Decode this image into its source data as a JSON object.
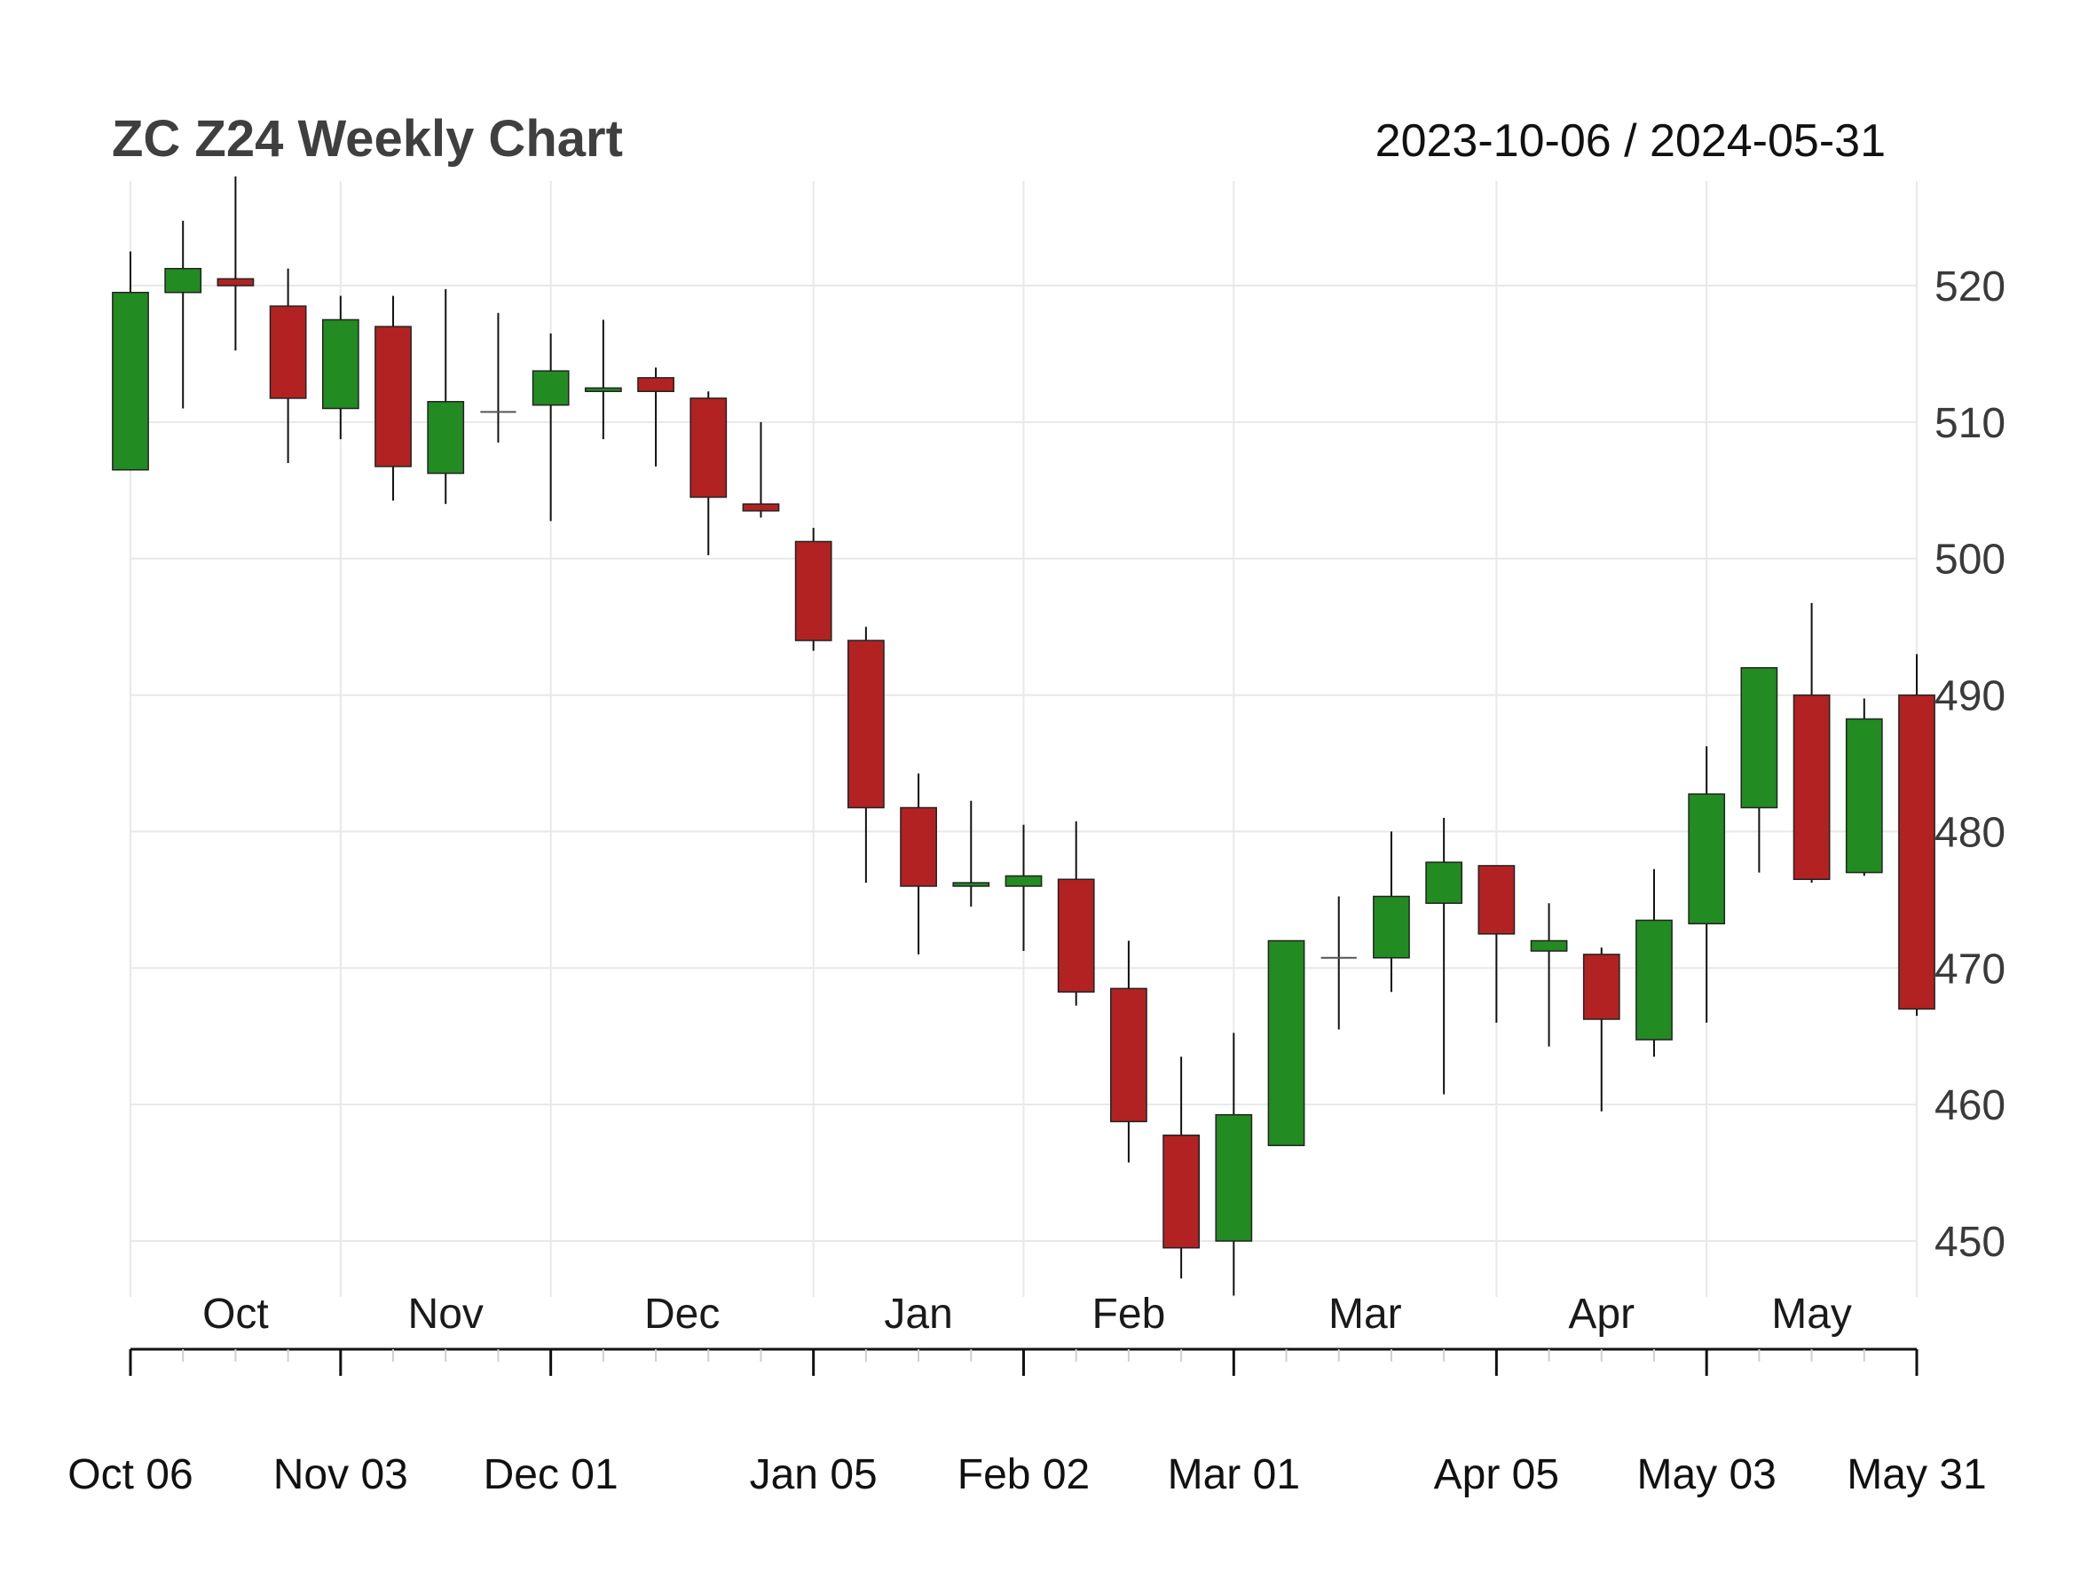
{
  "chart_data": {
    "type": "candlestick",
    "title": "ZC Z24 Weekly Chart",
    "date_range": "2023-10-06 / 2024-05-31",
    "ylim": [
      446,
      528
    ],
    "y_ticks": [
      450,
      460,
      470,
      480,
      490,
      500,
      510,
      520
    ],
    "grid": true,
    "colors": {
      "up": "#228B22",
      "down": "#B22222",
      "wick": "#111111",
      "grid": "#e8e8e8",
      "axis": "#111111"
    },
    "month_labels": [
      {
        "label": "Oct",
        "x": 2
      },
      {
        "label": "Nov",
        "x": 6
      },
      {
        "label": "Dec",
        "x": 10.5
      },
      {
        "label": "Jan",
        "x": 15
      },
      {
        "label": "Feb",
        "x": 19
      },
      {
        "label": "Mar",
        "x": 23.5
      },
      {
        "label": "Apr",
        "x": 28
      },
      {
        "label": "May",
        "x": 32
      }
    ],
    "date_labels": [
      {
        "label": "Oct 06",
        "x": 0
      },
      {
        "label": "Nov 03",
        "x": 4
      },
      {
        "label": "Dec 01",
        "x": 8
      },
      {
        "label": "Jan 05",
        "x": 13
      },
      {
        "label": "Feb 02",
        "x": 17
      },
      {
        "label": "Mar 01",
        "x": 21
      },
      {
        "label": "Apr 05",
        "x": 26
      },
      {
        "label": "May 03",
        "x": 30
      },
      {
        "label": "May 31",
        "x": 34
      }
    ],
    "candles": [
      {
        "date": "2023-10-06",
        "open": 506.5,
        "high": 522.5,
        "low": 506.5,
        "close": 519.5
      },
      {
        "date": "2023-10-13",
        "open": 519.5,
        "high": 524.75,
        "low": 511.0,
        "close": 521.25
      },
      {
        "date": "2023-10-20",
        "open": 520.5,
        "high": 528.0,
        "low": 515.25,
        "close": 520.0
      },
      {
        "date": "2023-10-27",
        "open": 518.5,
        "high": 521.25,
        "low": 507.0,
        "close": 511.75
      },
      {
        "date": "2023-11-03",
        "open": 511.0,
        "high": 519.25,
        "low": 508.75,
        "close": 517.5
      },
      {
        "date": "2023-11-10",
        "open": 517.0,
        "high": 519.25,
        "low": 504.25,
        "close": 506.75
      },
      {
        "date": "2023-11-17",
        "open": 506.25,
        "high": 519.75,
        "low": 504.0,
        "close": 511.5
      },
      {
        "date": "2023-11-24",
        "open": 510.75,
        "high": 518.0,
        "low": 508.5,
        "close": 510.75
      },
      {
        "date": "2023-12-01",
        "open": 511.25,
        "high": 516.5,
        "low": 502.75,
        "close": 513.75
      },
      {
        "date": "2023-12-08",
        "open": 512.25,
        "high": 517.5,
        "low": 508.75,
        "close": 512.5
      },
      {
        "date": "2023-12-15",
        "open": 513.25,
        "high": 514.0,
        "low": 506.75,
        "close": 512.25
      },
      {
        "date": "2023-12-22",
        "open": 511.75,
        "high": 512.25,
        "low": 500.25,
        "close": 504.5
      },
      {
        "date": "2023-12-29",
        "open": 504.0,
        "high": 510.0,
        "low": 503.0,
        "close": 503.5
      },
      {
        "date": "2024-01-05",
        "open": 501.25,
        "high": 502.25,
        "low": 493.25,
        "close": 494.0
      },
      {
        "date": "2024-01-12",
        "open": 494.0,
        "high": 495.0,
        "low": 476.25,
        "close": 481.75
      },
      {
        "date": "2024-01-19",
        "open": 481.75,
        "high": 484.25,
        "low": 471.0,
        "close": 476.0
      },
      {
        "date": "2024-01-26",
        "open": 476.0,
        "high": 482.25,
        "low": 474.5,
        "close": 476.25
      },
      {
        "date": "2024-02-02",
        "open": 476.0,
        "high": 480.5,
        "low": 471.25,
        "close": 476.75
      },
      {
        "date": "2024-02-09",
        "open": 476.5,
        "high": 480.75,
        "low": 467.25,
        "close": 468.25
      },
      {
        "date": "2024-02-16",
        "open": 468.5,
        "high": 472.0,
        "low": 455.75,
        "close": 458.75
      },
      {
        "date": "2024-02-23",
        "open": 457.75,
        "high": 463.5,
        "low": 447.25,
        "close": 449.5
      },
      {
        "date": "2024-03-01",
        "open": 450.0,
        "high": 465.25,
        "low": 446.0,
        "close": 459.25
      },
      {
        "date": "2024-03-08",
        "open": 457.0,
        "high": 472.0,
        "low": 457.0,
        "close": 472.0
      },
      {
        "date": "2024-03-15",
        "open": 470.75,
        "high": 475.25,
        "low": 465.5,
        "close": 470.75
      },
      {
        "date": "2024-03-22",
        "open": 470.75,
        "high": 480.0,
        "low": 468.25,
        "close": 475.25
      },
      {
        "date": "2024-03-29",
        "open": 474.75,
        "high": 481.0,
        "low": 460.75,
        "close": 477.75
      },
      {
        "date": "2024-04-05",
        "open": 477.5,
        "high": 477.5,
        "low": 466.0,
        "close": 472.5
      },
      {
        "date": "2024-04-12",
        "open": 471.25,
        "high": 474.75,
        "low": 464.25,
        "close": 472.0
      },
      {
        "date": "2024-04-19",
        "open": 471.0,
        "high": 471.5,
        "low": 459.5,
        "close": 466.25
      },
      {
        "date": "2024-04-26",
        "open": 464.75,
        "high": 477.25,
        "low": 463.5,
        "close": 473.5
      },
      {
        "date": "2024-05-03",
        "open": 473.25,
        "high": 486.25,
        "low": 466.0,
        "close": 482.75
      },
      {
        "date": "2024-05-10",
        "open": 481.75,
        "high": 492.0,
        "low": 477.0,
        "close": 492.0
      },
      {
        "date": "2024-05-17",
        "open": 490.0,
        "high": 496.75,
        "low": 476.25,
        "close": 476.5
      },
      {
        "date": "2024-05-24",
        "open": 477.0,
        "high": 489.75,
        "low": 476.75,
        "close": 488.25
      },
      {
        "date": "2024-05-31",
        "open": 490.0,
        "high": 493.0,
        "low": 466.5,
        "close": 467.0
      }
    ]
  }
}
